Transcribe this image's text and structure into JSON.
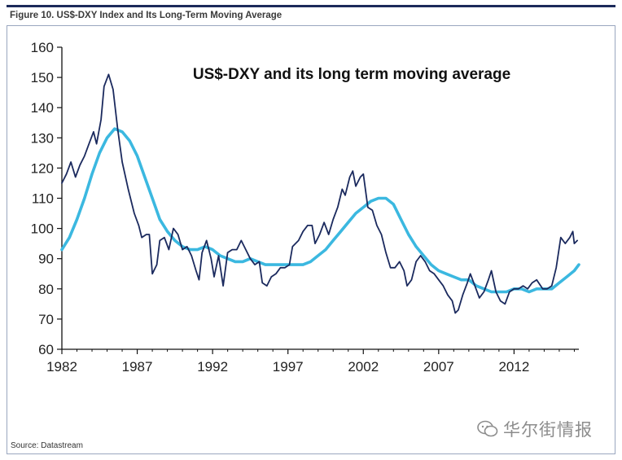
{
  "figure": {
    "title": "Figure 10. US$-DXY Index and Its Long-Term Moving Average",
    "source": "Source: Datastream",
    "watermark": "华尔街情报"
  },
  "chart_data": {
    "type": "line",
    "title": "US$-DXY and its long term moving average",
    "xlabel": "",
    "ylabel": "",
    "xlim": [
      1982,
      2016.3
    ],
    "ylim": [
      60,
      160
    ],
    "x_ticks": [
      1982,
      1987,
      1992,
      1997,
      2002,
      2007,
      2012
    ],
    "y_ticks": [
      60,
      70,
      80,
      90,
      100,
      110,
      120,
      130,
      140,
      150,
      160
    ],
    "grid": false,
    "legend": "none",
    "series": [
      {
        "color": "#1b2a5e",
        "style": "thin",
        "points": [
          [
            1982.0,
            115
          ],
          [
            1982.3,
            118
          ],
          [
            1982.6,
            122
          ],
          [
            1982.9,
            117
          ],
          [
            1983.2,
            121
          ],
          [
            1983.5,
            124
          ],
          [
            1983.8,
            128
          ],
          [
            1984.1,
            132
          ],
          [
            1984.3,
            128
          ],
          [
            1984.6,
            136
          ],
          [
            1984.8,
            147
          ],
          [
            1985.1,
            151
          ],
          [
            1985.4,
            146
          ],
          [
            1985.7,
            133
          ],
          [
            1986.0,
            122
          ],
          [
            1986.4,
            113
          ],
          [
            1986.8,
            105
          ],
          [
            1987.1,
            101
          ],
          [
            1987.3,
            97
          ],
          [
            1987.6,
            98
          ],
          [
            1987.8,
            98
          ],
          [
            1988.0,
            85
          ],
          [
            1988.3,
            88
          ],
          [
            1988.5,
            96
          ],
          [
            1988.8,
            97
          ],
          [
            1989.1,
            93
          ],
          [
            1989.4,
            100
          ],
          [
            1989.7,
            98
          ],
          [
            1990.0,
            93
          ],
          [
            1990.3,
            94
          ],
          [
            1990.6,
            91
          ],
          [
            1990.9,
            86
          ],
          [
            1991.1,
            83
          ],
          [
            1991.3,
            92
          ],
          [
            1991.6,
            96
          ],
          [
            1991.9,
            90
          ],
          [
            1992.1,
            84
          ],
          [
            1992.4,
            91
          ],
          [
            1992.7,
            81
          ],
          [
            1993.0,
            92
          ],
          [
            1993.3,
            93
          ],
          [
            1993.6,
            93
          ],
          [
            1993.9,
            96
          ],
          [
            1994.2,
            93
          ],
          [
            1994.5,
            90
          ],
          [
            1994.8,
            88
          ],
          [
            1995.1,
            89
          ],
          [
            1995.3,
            82
          ],
          [
            1995.6,
            81
          ],
          [
            1995.9,
            84
          ],
          [
            1996.2,
            85
          ],
          [
            1996.5,
            87
          ],
          [
            1996.8,
            87
          ],
          [
            1997.1,
            88
          ],
          [
            1997.3,
            94
          ],
          [
            1997.7,
            96
          ],
          [
            1998.0,
            99
          ],
          [
            1998.3,
            101
          ],
          [
            1998.6,
            101
          ],
          [
            1998.8,
            95
          ],
          [
            1999.1,
            98
          ],
          [
            1999.4,
            102
          ],
          [
            1999.7,
            98
          ],
          [
            2000.0,
            103
          ],
          [
            2000.3,
            107
          ],
          [
            2000.6,
            113
          ],
          [
            2000.8,
            111
          ],
          [
            2001.1,
            117
          ],
          [
            2001.3,
            119
          ],
          [
            2001.5,
            114
          ],
          [
            2001.8,
            117
          ],
          [
            2002.0,
            118
          ],
          [
            2002.3,
            107
          ],
          [
            2002.6,
            106
          ],
          [
            2002.9,
            101
          ],
          [
            2003.2,
            98
          ],
          [
            2003.5,
            92
          ],
          [
            2003.8,
            87
          ],
          [
            2004.1,
            87
          ],
          [
            2004.4,
            89
          ],
          [
            2004.7,
            86
          ],
          [
            2004.9,
            81
          ],
          [
            2005.2,
            83
          ],
          [
            2005.5,
            89
          ],
          [
            2005.8,
            91
          ],
          [
            2006.1,
            89
          ],
          [
            2006.4,
            86
          ],
          [
            2006.7,
            85
          ],
          [
            2007.0,
            83
          ],
          [
            2007.3,
            81
          ],
          [
            2007.6,
            78
          ],
          [
            2007.9,
            76
          ],
          [
            2008.1,
            72
          ],
          [
            2008.3,
            73
          ],
          [
            2008.6,
            78
          ],
          [
            2008.9,
            82
          ],
          [
            2009.1,
            85
          ],
          [
            2009.4,
            81
          ],
          [
            2009.7,
            77
          ],
          [
            2010.0,
            79
          ],
          [
            2010.3,
            83
          ],
          [
            2010.5,
            86
          ],
          [
            2010.8,
            79
          ],
          [
            2011.1,
            76
          ],
          [
            2011.4,
            75
          ],
          [
            2011.7,
            79
          ],
          [
            2012.0,
            80
          ],
          [
            2012.3,
            80
          ],
          [
            2012.6,
            81
          ],
          [
            2012.9,
            80
          ],
          [
            2013.2,
            82
          ],
          [
            2013.5,
            83
          ],
          [
            2013.9,
            80
          ],
          [
            2014.2,
            80
          ],
          [
            2014.5,
            81
          ],
          [
            2014.8,
            87
          ],
          [
            2015.1,
            97
          ],
          [
            2015.4,
            95
          ],
          [
            2015.7,
            97
          ],
          [
            2015.9,
            99
          ],
          [
            2016.0,
            95
          ],
          [
            2016.2,
            96
          ]
        ]
      },
      {
        "color": "#3bb8e0",
        "style": "thick",
        "points": [
          [
            1982.0,
            93
          ],
          [
            1982.5,
            97
          ],
          [
            1983.0,
            103
          ],
          [
            1983.5,
            110
          ],
          [
            1984.0,
            118
          ],
          [
            1984.5,
            125
          ],
          [
            1985.0,
            130
          ],
          [
            1985.5,
            133
          ],
          [
            1986.0,
            132
          ],
          [
            1986.5,
            129
          ],
          [
            1987.0,
            124
          ],
          [
            1987.5,
            117
          ],
          [
            1988.0,
            110
          ],
          [
            1988.5,
            103
          ],
          [
            1989.0,
            99
          ],
          [
            1989.5,
            96
          ],
          [
            1990.0,
            94
          ],
          [
            1990.5,
            93
          ],
          [
            1991.0,
            93
          ],
          [
            1991.5,
            94
          ],
          [
            1992.0,
            93
          ],
          [
            1992.5,
            91
          ],
          [
            1993.0,
            90
          ],
          [
            1993.5,
            89
          ],
          [
            1994.0,
            89
          ],
          [
            1994.5,
            90
          ],
          [
            1995.0,
            89
          ],
          [
            1995.5,
            88
          ],
          [
            1996.0,
            88
          ],
          [
            1996.5,
            88
          ],
          [
            1997.0,
            88
          ],
          [
            1997.5,
            88
          ],
          [
            1998.0,
            88
          ],
          [
            1998.5,
            89
          ],
          [
            1999.0,
            91
          ],
          [
            1999.5,
            93
          ],
          [
            2000.0,
            96
          ],
          [
            2000.5,
            99
          ],
          [
            2001.0,
            102
          ],
          [
            2001.5,
            105
          ],
          [
            2002.0,
            107
          ],
          [
            2002.5,
            109
          ],
          [
            2003.0,
            110
          ],
          [
            2003.5,
            110
          ],
          [
            2004.0,
            108
          ],
          [
            2004.5,
            103
          ],
          [
            2005.0,
            98
          ],
          [
            2005.5,
            94
          ],
          [
            2006.0,
            91
          ],
          [
            2006.5,
            88
          ],
          [
            2007.0,
            86
          ],
          [
            2007.5,
            85
          ],
          [
            2008.0,
            84
          ],
          [
            2008.5,
            83
          ],
          [
            2009.0,
            83
          ],
          [
            2009.5,
            81
          ],
          [
            2010.0,
            80
          ],
          [
            2010.5,
            79
          ],
          [
            2011.0,
            79
          ],
          [
            2011.5,
            79
          ],
          [
            2012.0,
            80
          ],
          [
            2012.5,
            80
          ],
          [
            2013.0,
            79
          ],
          [
            2013.5,
            80
          ],
          [
            2014.0,
            80
          ],
          [
            2014.5,
            80
          ],
          [
            2015.0,
            82
          ],
          [
            2015.5,
            84
          ],
          [
            2016.0,
            86
          ],
          [
            2016.3,
            88
          ]
        ]
      }
    ]
  }
}
